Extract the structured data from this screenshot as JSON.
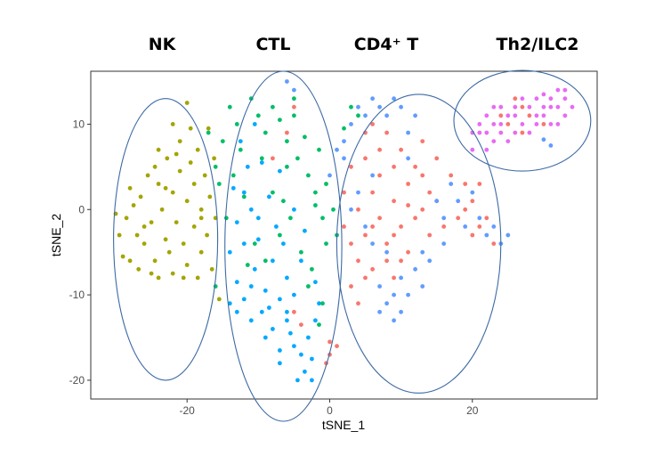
{
  "chart_data": {
    "type": "scatter",
    "xlabel": "tSNE_1",
    "ylabel": "tSNE_2",
    "xlim": [
      -33.5,
      37.5
    ],
    "ylim": [
      -22.2,
      16.2
    ],
    "x_ticks": [
      -20,
      0,
      20
    ],
    "y_ticks": [
      -20,
      -10,
      0,
      10
    ],
    "grid": false,
    "legend": "none",
    "group_labels": [
      {
        "text": "NK"
      },
      {
        "text": "CTL"
      },
      {
        "text": "CD4⁺ T"
      },
      {
        "text": "Th2/ILC2"
      }
    ],
    "ellipses": [
      {
        "name": "NK",
        "cx": -23,
        "cy": -3.5,
        "rx": 7.3,
        "ry": 16.5
      },
      {
        "name": "CTL",
        "cx": -6.5,
        "cy": -4.3,
        "rx": 8.2,
        "ry": 20.5
      },
      {
        "name": "CD4+ T",
        "cx": 12.5,
        "cy": -4,
        "rx": 11.5,
        "ry": 17.5
      },
      {
        "name": "Th2/ILC2",
        "cx": 27,
        "cy": 10.4,
        "rx": 9.6,
        "ry": 5.9
      }
    ],
    "series": [
      {
        "color": "#a3a500",
        "points": [
          [
            -30,
            -0.5
          ],
          [
            -29.5,
            -3
          ],
          [
            -29,
            -5.5
          ],
          [
            -28.5,
            -1
          ],
          [
            -28,
            -6
          ],
          [
            -27.5,
            0.5
          ],
          [
            -27,
            -3
          ],
          [
            -26.8,
            -7
          ],
          [
            -26.5,
            1.5
          ],
          [
            -26,
            -4
          ],
          [
            -25.5,
            4
          ],
          [
            -25,
            -1.5
          ],
          [
            -24.5,
            -6
          ],
          [
            -24,
            3
          ],
          [
            -24,
            -8
          ],
          [
            -23.5,
            0
          ],
          [
            -23,
            -3.5
          ],
          [
            -22.8,
            6
          ],
          [
            -22.5,
            -5
          ],
          [
            -22,
            2
          ],
          [
            -22,
            -7.5
          ],
          [
            -21.5,
            -1.5
          ],
          [
            -21,
            8
          ],
          [
            -21,
            4.5
          ],
          [
            -20.5,
            -4
          ],
          [
            -20,
            1
          ],
          [
            -20,
            -6.5
          ],
          [
            -19.5,
            9.5
          ],
          [
            -19.5,
            5.5
          ],
          [
            -19,
            -2
          ],
          [
            -19,
            3
          ],
          [
            -18.5,
            -8
          ],
          [
            -18.5,
            7
          ],
          [
            -18,
            0
          ],
          [
            -18,
            -5
          ],
          [
            -17.5,
            4
          ],
          [
            -17.2,
            -3
          ],
          [
            -17,
            9.5
          ],
          [
            -16.8,
            1.5
          ],
          [
            -16.5,
            -7
          ],
          [
            -16.2,
            6
          ],
          [
            -16,
            -1
          ],
          [
            -24,
            7
          ],
          [
            -26,
            -2
          ],
          [
            -28,
            2.5
          ],
          [
            -25,
            -7.5
          ],
          [
            -23,
            2.5
          ],
          [
            -21.5,
            6.5
          ],
          [
            -20.5,
            -8
          ],
          [
            -18,
            -1
          ],
          [
            -15.5,
            -10.5
          ],
          [
            -20,
            12.5
          ],
          [
            -22,
            10
          ],
          [
            -24.5,
            5
          ]
        ]
      },
      {
        "color": "#00a9ff",
        "points": [
          [
            -8,
            -14
          ],
          [
            -9,
            -15
          ],
          [
            -6,
            -12
          ],
          [
            -7,
            -16.5
          ],
          [
            -5.5,
            -14.5
          ],
          [
            -4,
            -17
          ],
          [
            -3.5,
            -19
          ],
          [
            -4.5,
            -20
          ],
          [
            -3,
            -15
          ],
          [
            -2.5,
            -17.5
          ],
          [
            -2,
            -13
          ],
          [
            -11,
            -13
          ],
          [
            -12,
            -10.5
          ],
          [
            -13,
            -8.5
          ],
          [
            -14,
            -11
          ],
          [
            -14,
            -5
          ],
          [
            -13,
            -1.5
          ],
          [
            -12,
            2
          ],
          [
            -11.5,
            5
          ],
          [
            -12.5,
            8
          ],
          [
            -11,
            0
          ],
          [
            -10,
            -3.5
          ],
          [
            -10.5,
            -7
          ],
          [
            -9,
            -9.5
          ],
          [
            -8,
            -6
          ],
          [
            -7.5,
            -2
          ],
          [
            -8.5,
            1.5
          ],
          [
            -7,
            4.5
          ],
          [
            -6,
            -8
          ],
          [
            -5,
            -10
          ],
          [
            -6.5,
            -4
          ],
          [
            -5,
            0
          ],
          [
            -4,
            -6
          ],
          [
            -3.5,
            -2.5
          ],
          [
            -2,
            -8.5
          ],
          [
            -1.5,
            -11
          ],
          [
            -9.5,
            -12
          ],
          [
            -7,
            -10.5
          ],
          [
            -10,
            -1
          ],
          [
            -12,
            -4
          ],
          [
            -13.5,
            2.5
          ],
          [
            -11,
            -9
          ],
          [
            -6,
            -13
          ],
          [
            -8.5,
            -11.5
          ],
          [
            -7,
            -18
          ],
          [
            -5,
            -16
          ],
          [
            -2.5,
            -20
          ],
          [
            -13,
            -12
          ],
          [
            -9.5,
            5.5
          ],
          [
            -10.5,
            10
          ]
        ]
      },
      {
        "color": "#00be67",
        "points": [
          [
            -14,
            12
          ],
          [
            -13,
            10
          ],
          [
            -12.5,
            7
          ],
          [
            -11,
            13
          ],
          [
            -10,
            11
          ],
          [
            -9,
            9
          ],
          [
            -8,
            12
          ],
          [
            -7,
            10.5
          ],
          [
            -6,
            8
          ],
          [
            -5,
            11
          ],
          [
            -4.5,
            6
          ],
          [
            -3,
            4
          ],
          [
            -2,
            2
          ],
          [
            -1,
            -1
          ],
          [
            -0.5,
            3
          ],
          [
            0.5,
            0
          ],
          [
            1,
            -3
          ],
          [
            -1.5,
            7
          ],
          [
            -13.5,
            4
          ],
          [
            -12,
            1.5
          ],
          [
            -10.5,
            -4
          ],
          [
            -9,
            -6
          ],
          [
            -7,
            -3
          ],
          [
            -5.5,
            -1
          ],
          [
            -4,
            -5
          ],
          [
            -3,
            -9
          ],
          [
            -2.5,
            -7
          ],
          [
            -1,
            -11
          ],
          [
            -6,
            5
          ],
          [
            -8,
            2
          ],
          [
            -9.5,
            6
          ],
          [
            -3.5,
            8.5
          ],
          [
            -2,
            0.5
          ],
          [
            -0.5,
            -4
          ],
          [
            -14.5,
            -1
          ],
          [
            -11.5,
            -6.5
          ],
          [
            -1.5,
            -13.5
          ],
          [
            -15,
            8
          ],
          [
            -15.5,
            3
          ],
          [
            -16,
            -9
          ],
          [
            -17,
            9
          ],
          [
            -16,
            5
          ],
          [
            3,
            12
          ],
          [
            4,
            11
          ],
          [
            2,
            9.5
          ],
          [
            -5,
            13
          ],
          [
            -6.5,
            1
          ]
        ]
      },
      {
        "color": "#f8766d",
        "points": [
          [
            2,
            2
          ],
          [
            3,
            5
          ],
          [
            4,
            0
          ],
          [
            5,
            -3
          ],
          [
            4,
            -6
          ],
          [
            6,
            2
          ],
          [
            7,
            -1
          ],
          [
            6,
            -7
          ],
          [
            7,
            4
          ],
          [
            8,
            -4
          ],
          [
            9,
            1
          ],
          [
            10,
            -2
          ],
          [
            9,
            -8
          ],
          [
            11,
            3
          ],
          [
            12,
            -1
          ],
          [
            11,
            -5
          ],
          [
            13,
            0
          ],
          [
            14,
            -3
          ],
          [
            13,
            4
          ],
          [
            15,
            1
          ],
          [
            16,
            -2
          ],
          [
            5,
            6
          ],
          [
            7,
            7
          ],
          [
            9,
            5
          ],
          [
            3,
            -9
          ],
          [
            4,
            -11
          ],
          [
            5,
            -8
          ],
          [
            2,
            -2
          ],
          [
            8,
            -6
          ],
          [
            10,
            -6
          ],
          [
            12,
            5
          ],
          [
            14,
            2
          ],
          [
            17,
            4
          ],
          [
            18,
            -1
          ],
          [
            19,
            0
          ],
          [
            20,
            1
          ],
          [
            21,
            -2
          ],
          [
            22,
            -1
          ],
          [
            20,
            -3
          ],
          [
            19,
            3
          ],
          [
            21,
            3
          ],
          [
            23,
            -4
          ],
          [
            8,
            9
          ],
          [
            6,
            10
          ],
          [
            5,
            9
          ],
          [
            10,
            7
          ],
          [
            1,
            -16
          ],
          [
            0,
            -15.5
          ],
          [
            -0.5,
            -18
          ],
          [
            0,
            -17
          ],
          [
            26,
            13
          ],
          [
            27,
            12
          ],
          [
            28,
            11
          ],
          [
            30,
            10
          ],
          [
            27,
            9
          ],
          [
            25,
            10
          ],
          [
            24,
            11
          ],
          [
            -8,
            6
          ],
          [
            -6,
            9
          ],
          [
            -5,
            -12
          ],
          [
            -4,
            -13.5
          ],
          [
            -5,
            12
          ],
          [
            13,
            8
          ],
          [
            15,
            6
          ],
          [
            9,
            -3
          ],
          [
            6,
            -2
          ],
          [
            3,
            -4
          ],
          [
            11,
            0.5
          ]
        ]
      },
      {
        "color": "#619cff",
        "points": [
          [
            2,
            8
          ],
          [
            3,
            10
          ],
          [
            4,
            12
          ],
          [
            5,
            11
          ],
          [
            6,
            13
          ],
          [
            7,
            12
          ],
          [
            8,
            11
          ],
          [
            9,
            13
          ],
          [
            10,
            12
          ],
          [
            11,
            9
          ],
          [
            12,
            11
          ],
          [
            4,
            2
          ],
          [
            5,
            -2
          ],
          [
            6,
            4
          ],
          [
            7,
            -9
          ],
          [
            8,
            -11
          ],
          [
            9,
            -10
          ],
          [
            10,
            -8
          ],
          [
            11,
            -10
          ],
          [
            12,
            -7
          ],
          [
            13,
            -9
          ],
          [
            14,
            -6
          ],
          [
            15,
            1
          ],
          [
            16,
            -1
          ],
          [
            17,
            3
          ],
          [
            18,
            1
          ],
          [
            19,
            -2
          ],
          [
            20,
            2
          ],
          [
            21,
            -1
          ],
          [
            22,
            -3
          ],
          [
            23,
            -2
          ],
          [
            24,
            -4
          ],
          [
            25,
            -3
          ],
          [
            -6,
            15
          ],
          [
            -5,
            14
          ],
          [
            1,
            7
          ],
          [
            2,
            6
          ],
          [
            0,
            4
          ],
          [
            8,
            -5
          ],
          [
            13,
            -5
          ],
          [
            16,
            -4
          ],
          [
            6,
            -4
          ],
          [
            3,
            0
          ],
          [
            31,
            7.5
          ],
          [
            30,
            8.2
          ],
          [
            11,
            6
          ],
          [
            10,
            -12
          ],
          [
            9,
            -13
          ],
          [
            7,
            -12
          ]
        ]
      },
      {
        "color": "#e76bf3",
        "points": [
          [
            20,
            9
          ],
          [
            21,
            10
          ],
          [
            22,
            11
          ],
          [
            23,
            12
          ],
          [
            24,
            10
          ],
          [
            25,
            11
          ],
          [
            26,
            12
          ],
          [
            27,
            13
          ],
          [
            28,
            12
          ],
          [
            29,
            11
          ],
          [
            30,
            12
          ],
          [
            31,
            13
          ],
          [
            32,
            12
          ],
          [
            33,
            11
          ],
          [
            34,
            12
          ],
          [
            33,
            13
          ],
          [
            32,
            14
          ],
          [
            31,
            12
          ],
          [
            30,
            11
          ],
          [
            29,
            10
          ],
          [
            28,
            9
          ],
          [
            27,
            10
          ],
          [
            26,
            9
          ],
          [
            25,
            8
          ],
          [
            24,
            9
          ],
          [
            23,
            8
          ],
          [
            22,
            7
          ],
          [
            21,
            9
          ],
          [
            20,
            7
          ],
          [
            31,
            10
          ],
          [
            32,
            10
          ],
          [
            33,
            14
          ],
          [
            29,
            13
          ],
          [
            26,
            11
          ],
          [
            23,
            10
          ],
          [
            22,
            9
          ],
          [
            24,
            12
          ],
          [
            30,
            13.5
          ]
        ]
      }
    ]
  }
}
